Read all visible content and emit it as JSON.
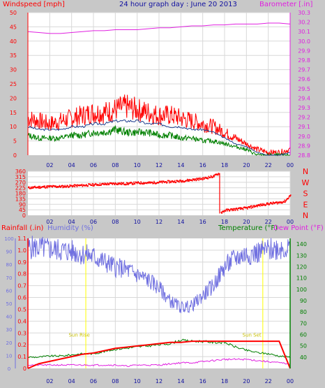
{
  "title": "24 hour graph day : June 20 2013",
  "x_tick_labels": [
    "02",
    "04",
    "06",
    "08",
    "10",
    "12",
    "14",
    "16",
    "18",
    "20",
    "22",
    "00"
  ],
  "colors": {
    "background": "#c8c8c8",
    "plot_bg": "#ffffff",
    "grid": "#d8d8d8",
    "wind": "#ff0000",
    "wind_avg": "#1f3f8f",
    "wind_low": "#008000",
    "barometer": "#e020e0",
    "direction": "#ff0000",
    "rain": "#ff0000",
    "humidity": "#7070e0",
    "temperature": "#008000",
    "dewpoint": "#e020e0",
    "sun": "#ffff00",
    "title": "#1010a0"
  },
  "labels": {
    "windspeed": "Windspeed [mph]",
    "barometer": "Barometer [.in]",
    "rainfall": "Rainfall (.in)",
    "humidity": "Humidity (%)",
    "temperature": "Temperature (°F)",
    "dewpoint": "Dew Point (°F)",
    "sunrise": "Sun Rise",
    "sunset": "Sun Set"
  },
  "chart_data": [
    {
      "type": "line",
      "x_hours": [
        0,
        1,
        2,
        3,
        4,
        5,
        6,
        7,
        8,
        9,
        10,
        11,
        12,
        13,
        14,
        15,
        16,
        17,
        18,
        19,
        20,
        21,
        22,
        23,
        24
      ],
      "series": [
        {
          "name": "Windspeed [mph]",
          "values": [
            13,
            12,
            11,
            12,
            13,
            14,
            15,
            15,
            16,
            17,
            16,
            15,
            14,
            14,
            13,
            12,
            11,
            10,
            8,
            6,
            4,
            2,
            1,
            1,
            2
          ]
        },
        {
          "values": [
            10,
            9,
            9,
            9,
            10,
            10,
            11,
            11,
            12,
            12,
            12,
            11,
            11,
            10,
            10,
            9,
            9,
            8,
            6,
            4,
            3,
            1,
            0,
            0,
            1
          ]
        },
        {
          "values": [
            7,
            6,
            6,
            6,
            7,
            7,
            8,
            8,
            9,
            8,
            8,
            8,
            7,
            7,
            6,
            6,
            5,
            5,
            4,
            3,
            2,
            0,
            0,
            0,
            0
          ]
        },
        {
          "name": "Barometer [.in]",
          "values": [
            30.1,
            30.09,
            30.08,
            30.08,
            30.09,
            30.1,
            30.11,
            30.11,
            30.12,
            30.12,
            30.12,
            30.13,
            30.14,
            30.14,
            30.15,
            30.16,
            30.16,
            30.17,
            30.17,
            30.18,
            30.18,
            30.18,
            30.19,
            30.19,
            30.18
          ]
        }
      ],
      "y_left_ticks": [
        0,
        5,
        10,
        15,
        20,
        25,
        30,
        35,
        40,
        45,
        50
      ],
      "y_right_ticks": [
        28.8,
        28.9,
        29.0,
        29.1,
        29.2,
        29.3,
        29.4,
        29.5,
        29.6,
        29.7,
        29.8,
        29.9,
        30.0,
        30.1,
        30.2,
        30.3
      ],
      "ylim_left": [
        0,
        50
      ],
      "ylim_right": [
        28.8,
        30.3
      ]
    },
    {
      "type": "scatter",
      "x_hours": [
        0,
        1,
        2,
        3,
        4,
        5,
        6,
        7,
        8,
        9,
        10,
        11,
        12,
        13,
        14,
        15,
        16,
        17,
        17.5,
        17.6,
        18,
        19,
        20,
        21,
        22,
        23,
        23.5,
        24
      ],
      "series": [
        {
          "name": "Wind direction",
          "values": [
            225,
            230,
            235,
            235,
            240,
            245,
            250,
            255,
            260,
            258,
            265,
            265,
            270,
            275,
            280,
            290,
            300,
            320,
            345,
            20,
            40,
            50,
            60,
            80,
            95,
            105,
            115,
            165
          ]
        }
      ],
      "y_left_ticks": [
        0,
        45,
        90,
        135,
        180,
        225,
        270,
        315,
        360
      ],
      "compass_labels": [
        "N",
        "W",
        "S",
        "E",
        "N"
      ],
      "ylim": [
        0,
        360
      ]
    },
    {
      "type": "line",
      "x_hours": [
        0,
        1,
        2,
        3,
        4,
        5,
        6,
        7,
        8,
        9,
        10,
        11,
        12,
        13,
        14,
        15,
        16,
        17,
        18,
        19,
        20,
        21,
        22,
        23,
        24
      ],
      "series": [
        {
          "name": "Rainfall (.in)",
          "values": [
            0,
            0.04,
            0.06,
            0.08,
            0.1,
            0.12,
            0.13,
            0.15,
            0.17,
            0.18,
            0.19,
            0.2,
            0.21,
            0.22,
            0.22,
            0.23,
            0.23,
            0.23,
            0.23,
            0.23,
            0.23,
            0.23,
            0.23,
            0.23,
            0
          ]
        },
        {
          "name": "Humidity (%)",
          "values": [
            93,
            93,
            92,
            91,
            90,
            88,
            86,
            82,
            78,
            76,
            72,
            68,
            62,
            52,
            47,
            48,
            56,
            64,
            78,
            85,
            88,
            89,
            91,
            93,
            92
          ]
        },
        {
          "name": "Temperature (°F)",
          "values": [
            40,
            40,
            41,
            41,
            42,
            43,
            43,
            45,
            47,
            48,
            49,
            50,
            51,
            52,
            55,
            54,
            54,
            53,
            53,
            49,
            46,
            44,
            43,
            41,
            40
          ]
        },
        {
          "name": "Dew Point (°F)",
          "values": [
            33,
            33,
            33,
            33,
            33,
            33,
            33,
            33,
            33,
            32,
            33,
            33,
            33,
            34,
            35,
            35,
            36,
            37,
            38,
            38,
            38,
            37,
            36,
            35,
            34
          ]
        }
      ],
      "rain_ticks": [
        0,
        0.1,
        0.2,
        0.3,
        0.4,
        0.5,
        0.6,
        0.7,
        0.8,
        0.9,
        1.0,
        1.1
      ],
      "humidity_ticks": [
        0,
        10,
        20,
        30,
        40,
        50,
        60,
        70,
        80,
        90,
        100
      ],
      "temp_ticks": [
        40,
        50,
        60,
        70,
        80,
        90,
        100,
        110,
        120,
        130,
        140
      ],
      "ylim_rain": [
        0,
        1.1
      ],
      "ylim_humidity": [
        0,
        100
      ],
      "ylim_temp": [
        30,
        145
      ]
    }
  ]
}
